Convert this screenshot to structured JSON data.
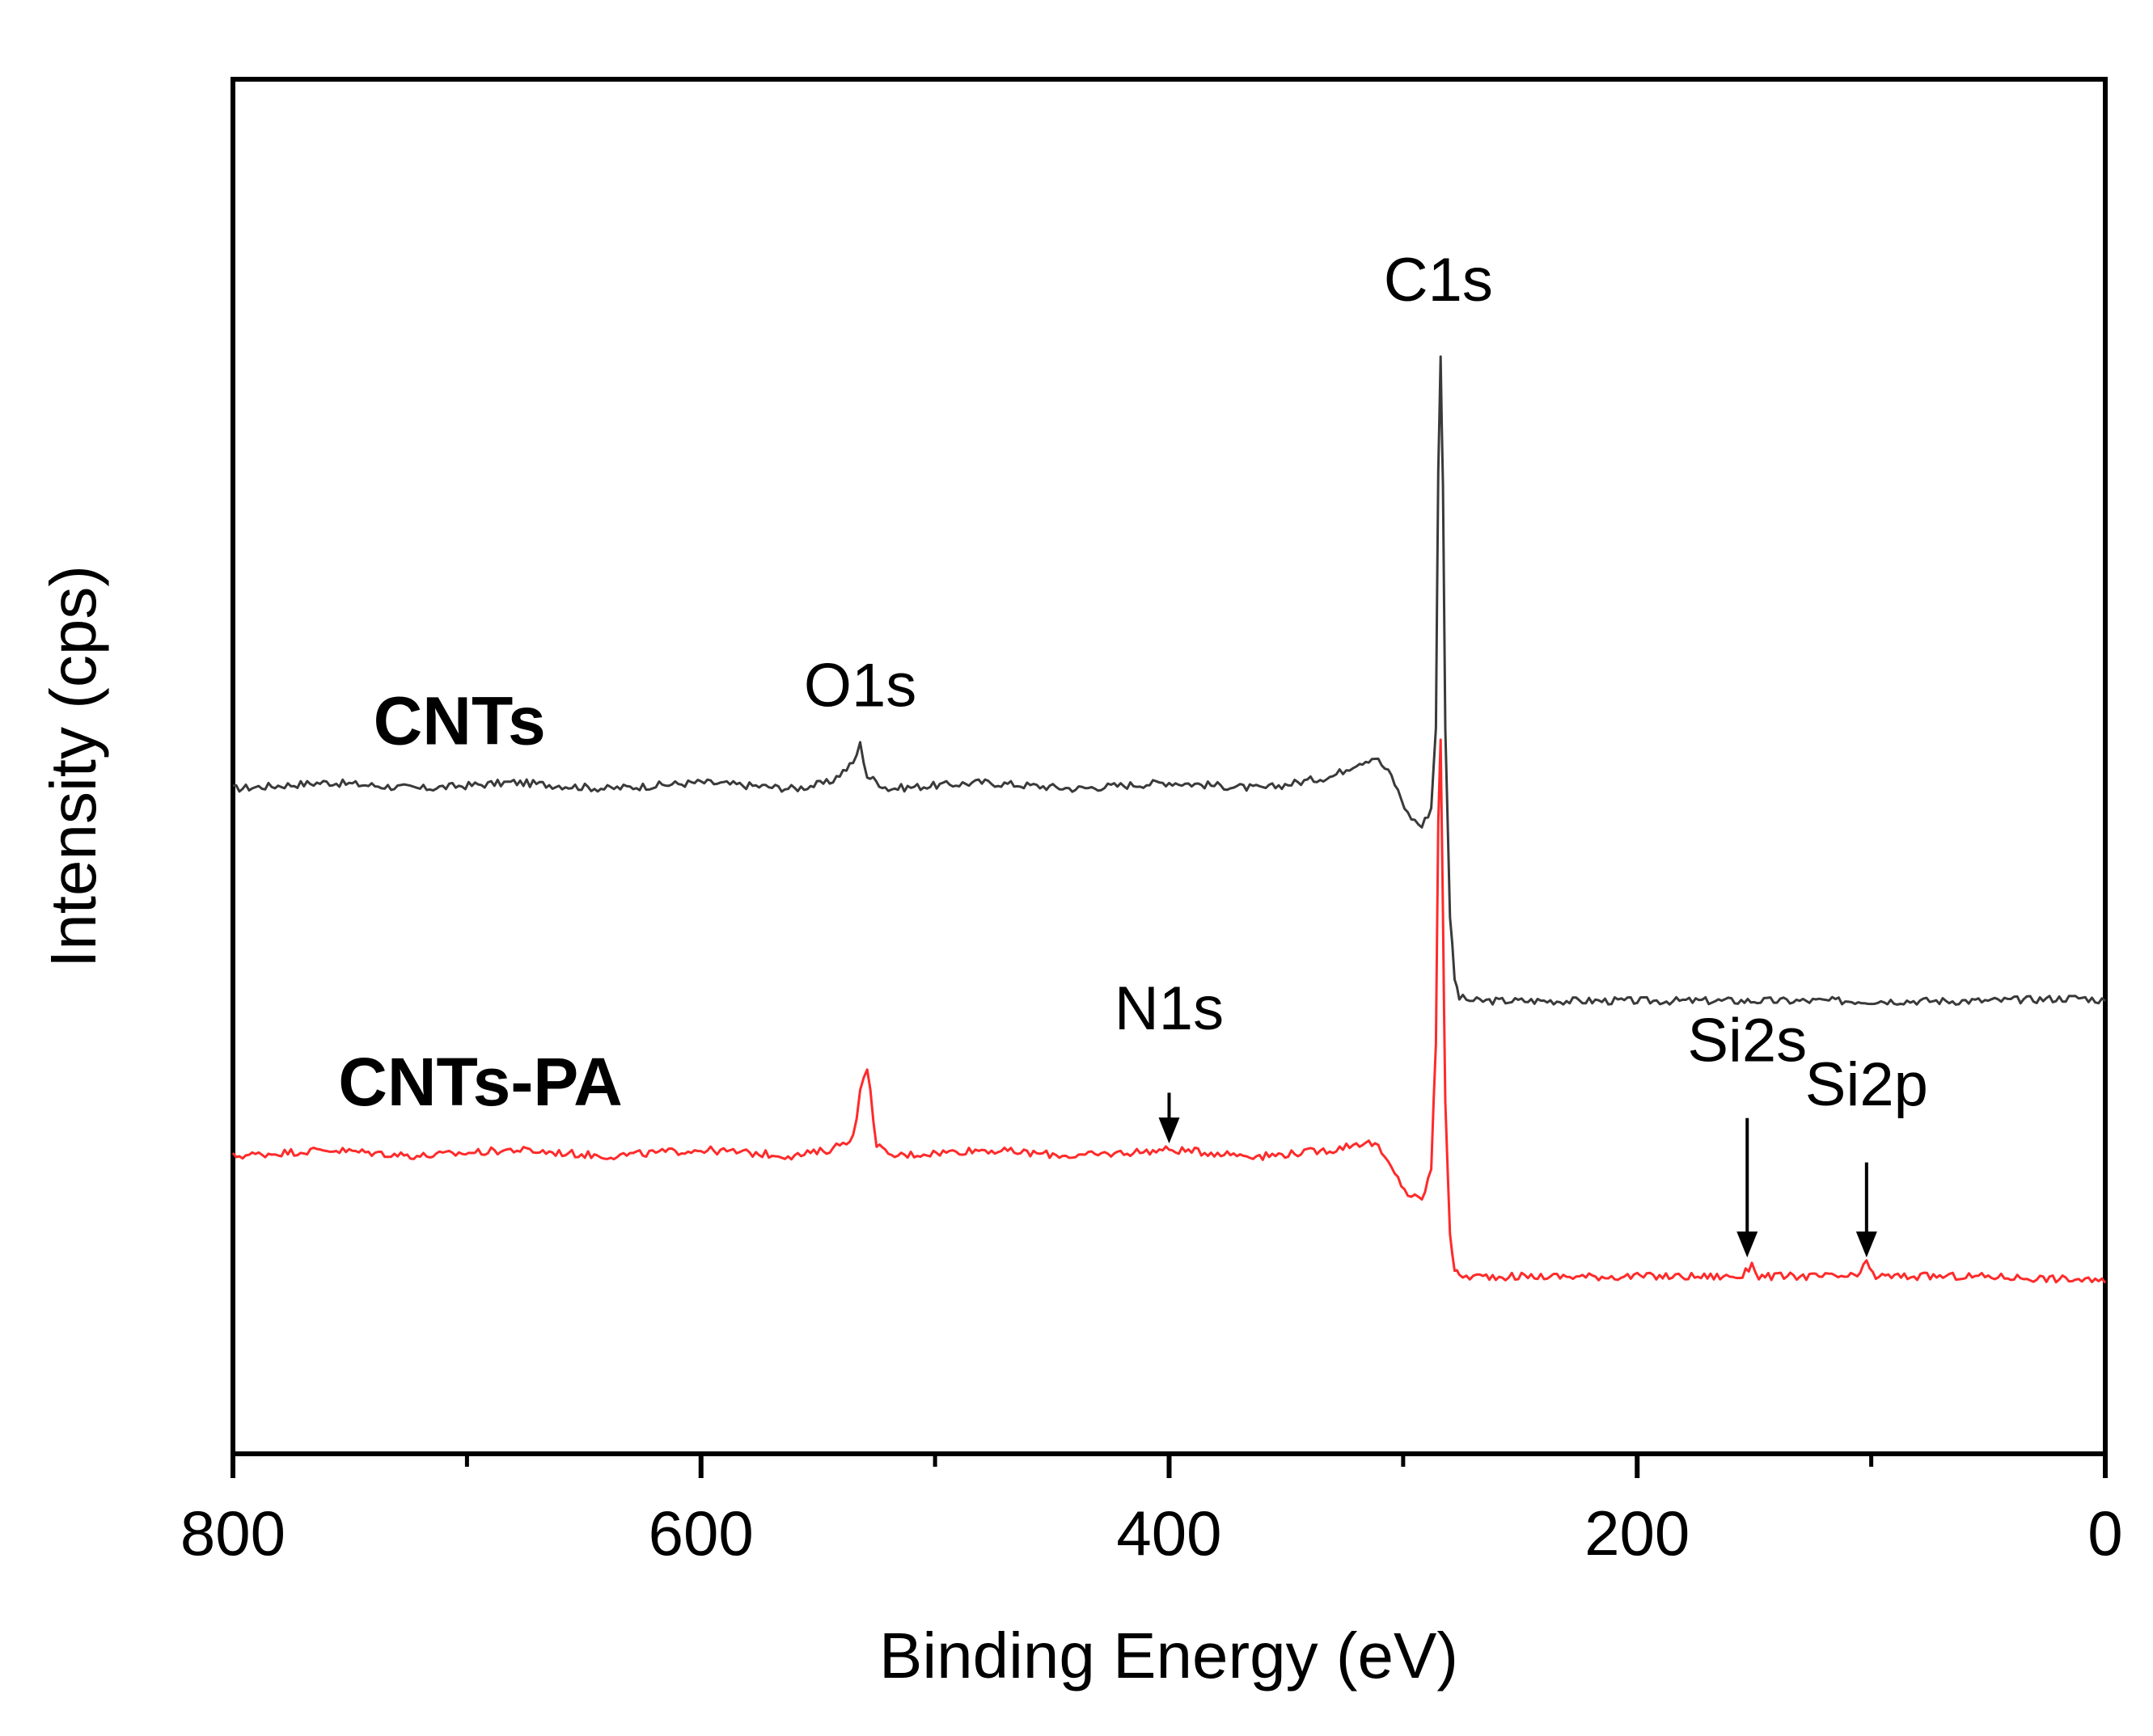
{
  "chart_data": {
    "type": "line",
    "title": "",
    "xlabel": "Binding Energy (eV)",
    "ylabel": "Intensity (cps)",
    "xlim": [
      800,
      0
    ],
    "x_reversed": true,
    "x_ticks": [
      800,
      600,
      400,
      200,
      0
    ],
    "x_minor_ticks": [
      700,
      500,
      300,
      100
    ],
    "y_ticks_shown": false,
    "colors": {
      "CNTs": "#3a3a3a",
      "CNTs-PA": "#ff2a2a",
      "axis": "#000000"
    },
    "series": [
      {
        "name": "CNTs",
        "label": "CNTs",
        "color": "#3a3a3a",
        "x": [
          800,
          760,
          720,
          680,
          640,
          600,
          560,
          545,
          535,
          532,
          529,
          520,
          480,
          440,
          400,
          360,
          330,
          320,
          312,
          305,
          298,
          292,
          288,
          286,
          285,
          284,
          283,
          282,
          280,
          278,
          276,
          270,
          200,
          100,
          50,
          10,
          0
        ],
        "y": [
          0.5,
          0.51,
          0.5,
          0.51,
          0.5,
          0.51,
          0.5,
          0.51,
          0.54,
          0.57,
          0.52,
          0.5,
          0.51,
          0.5,
          0.51,
          0.5,
          0.52,
          0.54,
          0.55,
          0.52,
          0.46,
          0.44,
          0.47,
          0.6,
          1.0,
          1.18,
          0.98,
          0.6,
          0.3,
          0.2,
          0.17,
          0.165,
          0.165,
          0.165,
          0.165,
          0.17,
          0.165
        ]
      },
      {
        "name": "CNTs-PA",
        "label": "CNTs-PA",
        "color": "#ff2a2a",
        "x": [
          800,
          760,
          720,
          680,
          640,
          600,
          560,
          545,
          535,
          532,
          529,
          525,
          520,
          480,
          440,
          400,
          360,
          330,
          320,
          312,
          305,
          298,
          292,
          288,
          286,
          285,
          284,
          283,
          282,
          280,
          278,
          276,
          270,
          200,
          155,
          151,
          148,
          140,
          106,
          102,
          98,
          90,
          50,
          10,
          0
        ],
        "y": [
          -0.08,
          -0.07,
          -0.08,
          -0.07,
          -0.08,
          -0.07,
          -0.08,
          -0.07,
          -0.05,
          0.02,
          0.06,
          -0.06,
          -0.08,
          -0.07,
          -0.08,
          -0.07,
          -0.08,
          -0.07,
          -0.06,
          -0.06,
          -0.1,
          -0.14,
          -0.15,
          -0.1,
          0.1,
          0.45,
          0.58,
          0.3,
          0.0,
          -0.2,
          -0.26,
          -0.27,
          -0.27,
          -0.27,
          -0.27,
          -0.25,
          -0.27,
          -0.27,
          -0.27,
          -0.25,
          -0.27,
          -0.27,
          -0.27,
          -0.275,
          -0.28
        ]
      }
    ],
    "annotations": [
      {
        "id": "c1s",
        "text": "C1s",
        "x": 285,
        "y": 1.27,
        "arrow": false
      },
      {
        "id": "o1s",
        "text": "O1s",
        "x": 532,
        "y": 0.63,
        "arrow": false
      },
      {
        "id": "n1s",
        "text": "N1s",
        "x": 400,
        "y": 0.12,
        "arrow": true,
        "arrow_from": 0.02,
        "arrow_to": -0.06
      },
      {
        "id": "si2s",
        "text": "Si2s",
        "x": 153,
        "y": 0.07,
        "arrow": true,
        "arrow_from": -0.02,
        "arrow_to": -0.24
      },
      {
        "id": "si2p",
        "text": "Si2p",
        "x": 102,
        "y": 0.0,
        "arrow": true,
        "arrow_from": -0.09,
        "arrow_to": -0.24
      }
    ],
    "series_labels": [
      {
        "text": "CNTs",
        "series": "CNTs",
        "x": 740,
        "y": 0.57
      },
      {
        "text": "CNTs-PA",
        "series": "CNTs-PA",
        "x": 755,
        "y": 0.0
      }
    ],
    "ylim": [
      -0.55,
      1.62
    ]
  }
}
